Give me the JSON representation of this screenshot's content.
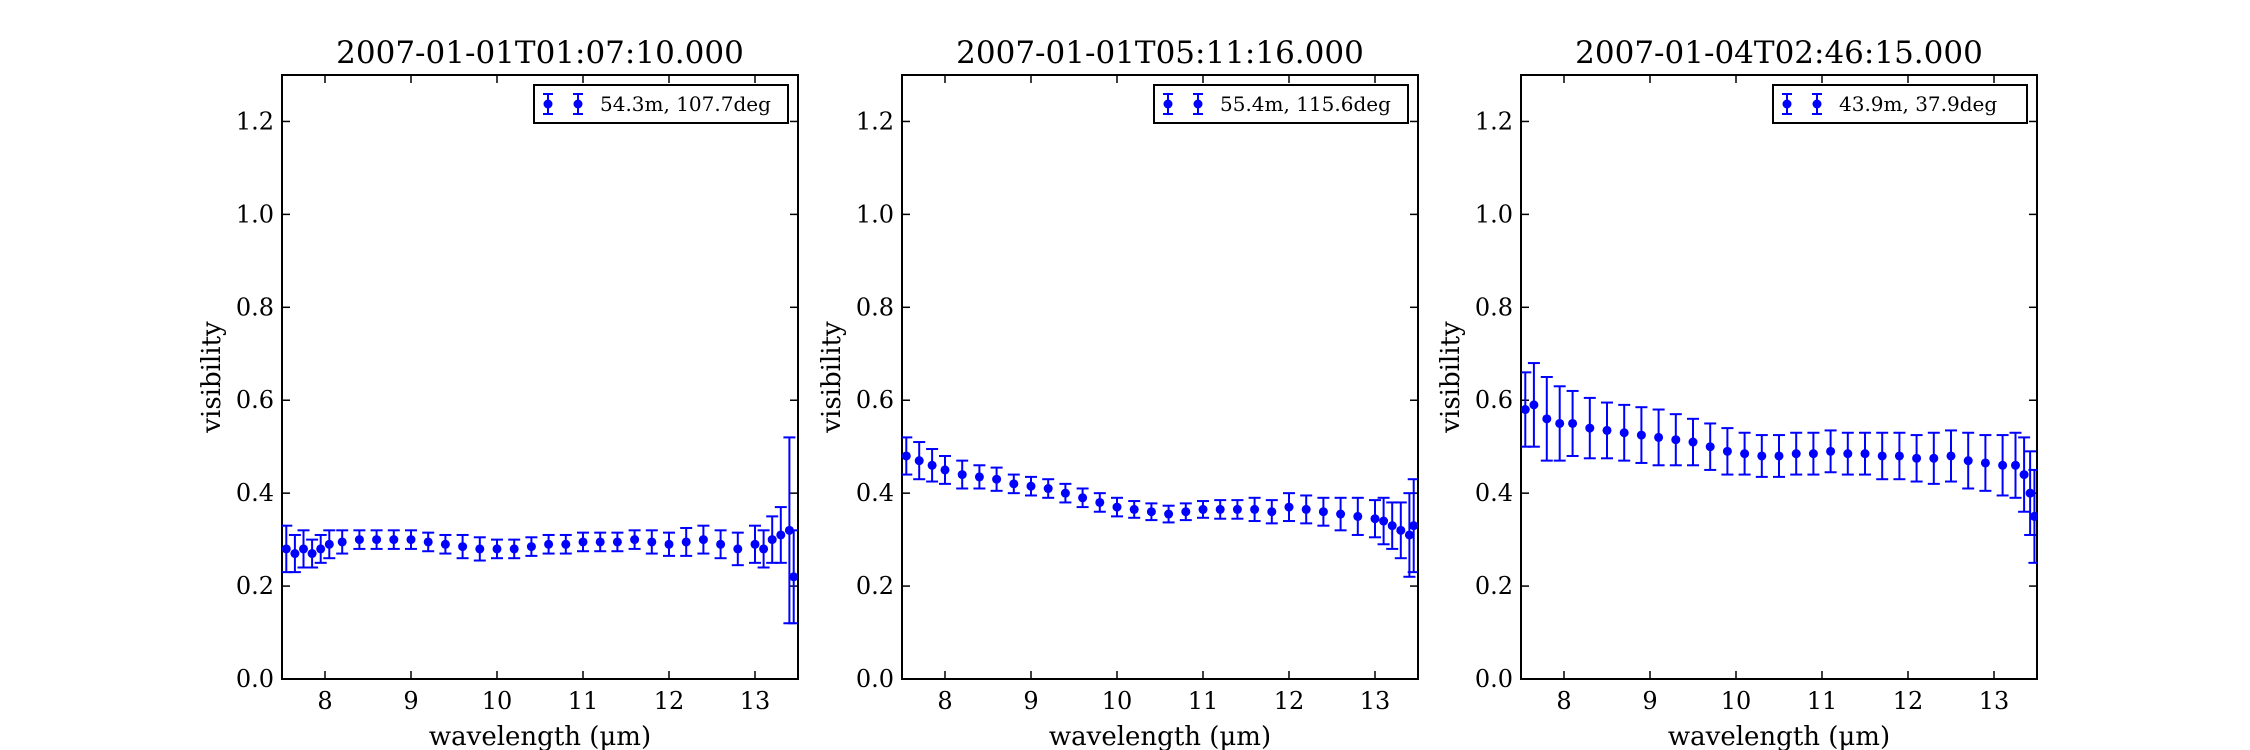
{
  "chart_data": [
    {
      "type": "scatter",
      "title": "2007-01-01T01:07:10.000",
      "xlabel": "wavelength (μm)",
      "ylabel": "visibility",
      "xlim": [
        7.5,
        13.5
      ],
      "ylim": [
        0.0,
        1.3
      ],
      "xticks": [
        "8",
        "9",
        "10",
        "11",
        "12",
        "13"
      ],
      "yticks": [
        "0.0",
        "0.2",
        "0.4",
        "0.6",
        "0.8",
        "1.0",
        "1.2"
      ],
      "grid": false,
      "legend_position": "top-right",
      "series": [
        {
          "name": "54.3m, 107.7deg",
          "color": "#0000ff",
          "points": [
            [
              7.55,
              0.28,
              0.05
            ],
            [
              7.65,
              0.27,
              0.04
            ],
            [
              7.75,
              0.28,
              0.04
            ],
            [
              7.85,
              0.27,
              0.03
            ],
            [
              7.95,
              0.28,
              0.03
            ],
            [
              8.05,
              0.29,
              0.03
            ],
            [
              8.2,
              0.295,
              0.025
            ],
            [
              8.4,
              0.3,
              0.02
            ],
            [
              8.6,
              0.3,
              0.02
            ],
            [
              8.8,
              0.3,
              0.02
            ],
            [
              9.0,
              0.3,
              0.02
            ],
            [
              9.2,
              0.295,
              0.02
            ],
            [
              9.4,
              0.29,
              0.02
            ],
            [
              9.6,
              0.285,
              0.025
            ],
            [
              9.8,
              0.28,
              0.025
            ],
            [
              10.0,
              0.28,
              0.02
            ],
            [
              10.2,
              0.28,
              0.02
            ],
            [
              10.4,
              0.285,
              0.02
            ],
            [
              10.6,
              0.29,
              0.02
            ],
            [
              10.8,
              0.29,
              0.02
            ],
            [
              11.0,
              0.295,
              0.02
            ],
            [
              11.2,
              0.295,
              0.02
            ],
            [
              11.4,
              0.295,
              0.02
            ],
            [
              11.6,
              0.3,
              0.02
            ],
            [
              11.8,
              0.295,
              0.025
            ],
            [
              12.0,
              0.29,
              0.025
            ],
            [
              12.2,
              0.295,
              0.03
            ],
            [
              12.4,
              0.3,
              0.03
            ],
            [
              12.6,
              0.29,
              0.03
            ],
            [
              12.8,
              0.28,
              0.035
            ],
            [
              13.0,
              0.29,
              0.04
            ],
            [
              13.1,
              0.28,
              0.04
            ],
            [
              13.2,
              0.3,
              0.05
            ],
            [
              13.3,
              0.31,
              0.06
            ],
            [
              13.4,
              0.32,
              0.2
            ],
            [
              13.45,
              0.22,
              0.1
            ]
          ]
        }
      ]
    },
    {
      "type": "scatter",
      "title": "2007-01-01T05:11:16.000",
      "xlabel": "wavelength (μm)",
      "ylabel": "visibility",
      "xlim": [
        7.5,
        13.5
      ],
      "ylim": [
        0.0,
        1.3
      ],
      "xticks": [
        "8",
        "9",
        "10",
        "11",
        "12",
        "13"
      ],
      "yticks": [
        "0.0",
        "0.2",
        "0.4",
        "0.6",
        "0.8",
        "1.0",
        "1.2"
      ],
      "grid": false,
      "legend_position": "top-right",
      "series": [
        {
          "name": "55.4m, 115.6deg",
          "color": "#0000ff",
          "points": [
            [
              7.55,
              0.48,
              0.04
            ],
            [
              7.7,
              0.47,
              0.04
            ],
            [
              7.85,
              0.46,
              0.035
            ],
            [
              8.0,
              0.45,
              0.03
            ],
            [
              8.2,
              0.44,
              0.03
            ],
            [
              8.4,
              0.435,
              0.025
            ],
            [
              8.6,
              0.43,
              0.025
            ],
            [
              8.8,
              0.42,
              0.02
            ],
            [
              9.0,
              0.415,
              0.02
            ],
            [
              9.2,
              0.41,
              0.02
            ],
            [
              9.4,
              0.4,
              0.02
            ],
            [
              9.6,
              0.39,
              0.02
            ],
            [
              9.8,
              0.38,
              0.02
            ],
            [
              10.0,
              0.37,
              0.02
            ],
            [
              10.2,
              0.365,
              0.018
            ],
            [
              10.4,
              0.36,
              0.018
            ],
            [
              10.6,
              0.355,
              0.018
            ],
            [
              10.8,
              0.36,
              0.018
            ],
            [
              11.0,
              0.365,
              0.018
            ],
            [
              11.2,
              0.365,
              0.02
            ],
            [
              11.4,
              0.365,
              0.02
            ],
            [
              11.6,
              0.365,
              0.025
            ],
            [
              11.8,
              0.36,
              0.025
            ],
            [
              12.0,
              0.37,
              0.03
            ],
            [
              12.2,
              0.365,
              0.03
            ],
            [
              12.4,
              0.36,
              0.03
            ],
            [
              12.6,
              0.355,
              0.035
            ],
            [
              12.8,
              0.35,
              0.04
            ],
            [
              13.0,
              0.345,
              0.04
            ],
            [
              13.1,
              0.34,
              0.05
            ],
            [
              13.2,
              0.33,
              0.05
            ],
            [
              13.3,
              0.32,
              0.06
            ],
            [
              13.4,
              0.31,
              0.09
            ],
            [
              13.45,
              0.33,
              0.1
            ]
          ]
        }
      ]
    },
    {
      "type": "scatter",
      "title": "2007-01-04T02:46:15.000",
      "xlabel": "wavelength (μm)",
      "ylabel": "visibility",
      "xlim": [
        7.5,
        13.5
      ],
      "ylim": [
        0.0,
        1.3
      ],
      "xticks": [
        "8",
        "9",
        "10",
        "11",
        "12",
        "13"
      ],
      "yticks": [
        "0.0",
        "0.2",
        "0.4",
        "0.6",
        "0.8",
        "1.0",
        "1.2"
      ],
      "grid": false,
      "legend_position": "top-right",
      "series": [
        {
          "name": "43.9m, 37.9deg",
          "color": "#0000ff",
          "points": [
            [
              7.55,
              0.58,
              0.08
            ],
            [
              7.65,
              0.59,
              0.09
            ],
            [
              7.8,
              0.56,
              0.09
            ],
            [
              7.95,
              0.55,
              0.08
            ],
            [
              8.1,
              0.55,
              0.07
            ],
            [
              8.3,
              0.54,
              0.065
            ],
            [
              8.5,
              0.535,
              0.06
            ],
            [
              8.7,
              0.53,
              0.06
            ],
            [
              8.9,
              0.525,
              0.06
            ],
            [
              9.1,
              0.52,
              0.06
            ],
            [
              9.3,
              0.515,
              0.055
            ],
            [
              9.5,
              0.51,
              0.05
            ],
            [
              9.7,
              0.5,
              0.05
            ],
            [
              9.9,
              0.49,
              0.05
            ],
            [
              10.1,
              0.485,
              0.045
            ],
            [
              10.3,
              0.48,
              0.045
            ],
            [
              10.5,
              0.48,
              0.045
            ],
            [
              10.7,
              0.485,
              0.045
            ],
            [
              10.9,
              0.485,
              0.045
            ],
            [
              11.1,
              0.49,
              0.045
            ],
            [
              11.3,
              0.485,
              0.045
            ],
            [
              11.5,
              0.485,
              0.045
            ],
            [
              11.7,
              0.48,
              0.05
            ],
            [
              11.9,
              0.48,
              0.05
            ],
            [
              12.1,
              0.475,
              0.05
            ],
            [
              12.3,
              0.475,
              0.055
            ],
            [
              12.5,
              0.48,
              0.055
            ],
            [
              12.7,
              0.47,
              0.06
            ],
            [
              12.9,
              0.465,
              0.06
            ],
            [
              13.1,
              0.46,
              0.065
            ],
            [
              13.25,
              0.46,
              0.07
            ],
            [
              13.35,
              0.44,
              0.08
            ],
            [
              13.42,
              0.4,
              0.09
            ],
            [
              13.47,
              0.35,
              0.1
            ]
          ]
        }
      ]
    }
  ]
}
